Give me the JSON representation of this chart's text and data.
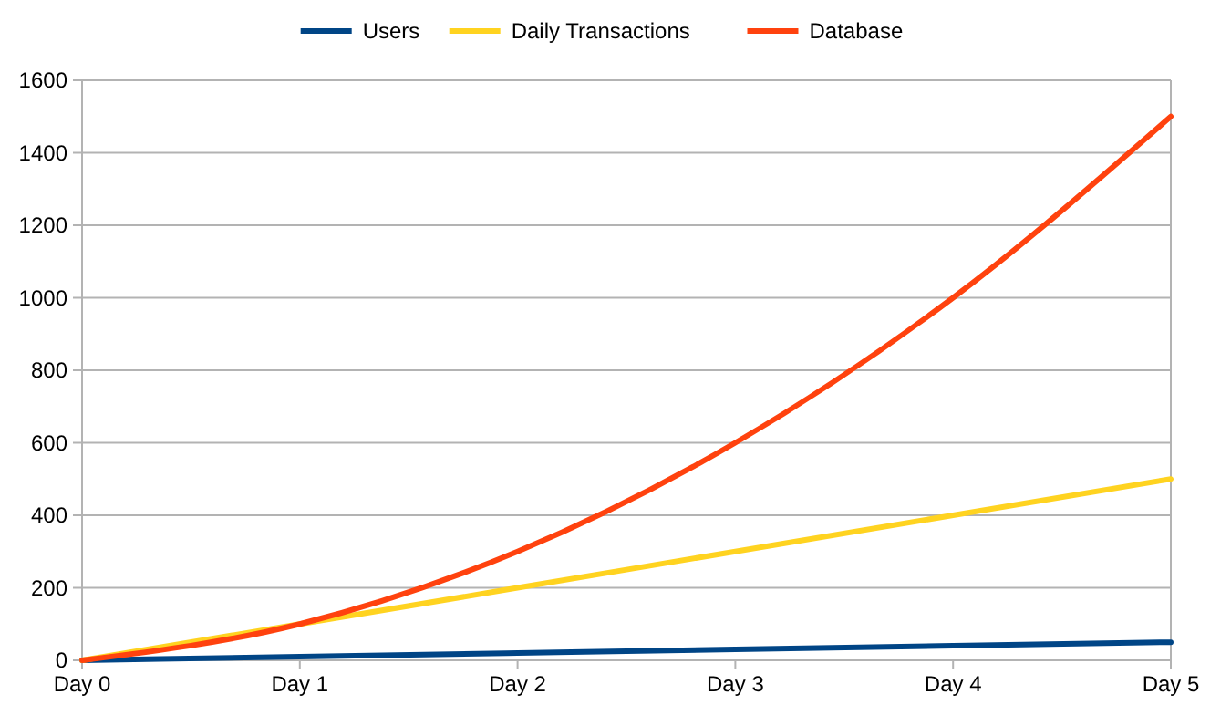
{
  "chart_data": {
    "type": "line",
    "categories": [
      "Day 0",
      "Day 1",
      "Day 2",
      "Day 3",
      "Day 4",
      "Day 5"
    ],
    "series": [
      {
        "name": "Users",
        "color": "#004586",
        "values": [
          0,
          10,
          20,
          30,
          40,
          50
        ]
      },
      {
        "name": "Daily Transactions",
        "color": "#ffd320",
        "values": [
          0,
          100,
          200,
          300,
          400,
          500
        ]
      },
      {
        "name": "Database",
        "color": "#ff420e",
        "values": [
          0,
          100,
          300,
          600,
          1000,
          1500
        ]
      }
    ],
    "ylim": [
      0,
      1600
    ],
    "yticks": [
      0,
      200,
      400,
      600,
      800,
      1000,
      1200,
      1400,
      1600
    ],
    "grid": "y",
    "legend": "top",
    "marker": "none",
    "line_style": "solid"
  }
}
